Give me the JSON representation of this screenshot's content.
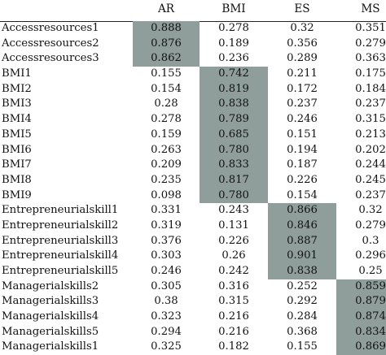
{
  "highlight_color": "#8f9e9b",
  "table": {
    "columns": [
      "",
      "AR",
      "BMI",
      "ES",
      "MS"
    ],
    "rows": [
      {
        "label": "Accessresources1",
        "values": [
          "0.888",
          "0.278",
          "0.32",
          "0.351"
        ],
        "highlight": 0
      },
      {
        "label": "Accessresources2",
        "values": [
          "0.876",
          "0.189",
          "0.356",
          "0.279"
        ],
        "highlight": 0
      },
      {
        "label": "Accessresources3",
        "values": [
          "0.862",
          "0.236",
          "0.289",
          "0.363"
        ],
        "highlight": 0
      },
      {
        "label": "BMI1",
        "values": [
          "0.155",
          "0.742",
          "0.211",
          "0.175"
        ],
        "highlight": 1
      },
      {
        "label": "BMI2",
        "values": [
          "0.154",
          "0.819",
          "0.172",
          "0.184"
        ],
        "highlight": 1
      },
      {
        "label": "BMI3",
        "values": [
          "0.28",
          "0.838",
          "0.237",
          "0.237"
        ],
        "highlight": 1
      },
      {
        "label": "BMI4",
        "values": [
          "0.278",
          "0.789",
          "0.246",
          "0.315"
        ],
        "highlight": 1
      },
      {
        "label": "BMI5",
        "values": [
          "0.159",
          "0.685",
          "0.151",
          "0.213"
        ],
        "highlight": 1
      },
      {
        "label": "BMI6",
        "values": [
          "0.263",
          "0.780",
          "0.194",
          "0.202"
        ],
        "highlight": 1
      },
      {
        "label": "BMI7",
        "values": [
          "0.209",
          "0.833",
          "0.187",
          "0.244"
        ],
        "highlight": 1
      },
      {
        "label": "BMI8",
        "values": [
          "0.235",
          "0.817",
          "0.226",
          "0.245"
        ],
        "highlight": 1
      },
      {
        "label": "BMI9",
        "values": [
          "0.098",
          "0.780",
          "0.154",
          "0.237"
        ],
        "highlight": 1
      },
      {
        "label": "Entrepreneurialskill1",
        "values": [
          "0.331",
          "0.243",
          "0.866",
          "0.32"
        ],
        "highlight": 2
      },
      {
        "label": "Entrepreneurialskill2",
        "values": [
          "0.319",
          "0.131",
          "0.846",
          "0.279"
        ],
        "highlight": 2
      },
      {
        "label": "Entrepreneurialskill3",
        "values": [
          "0.376",
          "0.226",
          "0.887",
          "0.3"
        ],
        "highlight": 2
      },
      {
        "label": "Entrepreneurialskill4",
        "values": [
          "0.303",
          "0.26",
          "0.901",
          "0.296"
        ],
        "highlight": 2
      },
      {
        "label": "Entrepreneurialskill5",
        "values": [
          "0.246",
          "0.242",
          "0.838",
          "0.25"
        ],
        "highlight": 2
      },
      {
        "label": "Managerialskills2",
        "values": [
          "0.305",
          "0.316",
          "0.252",
          "0.859"
        ],
        "highlight": 3
      },
      {
        "label": "Managerialskills3",
        "values": [
          "0.38",
          "0.315",
          "0.292",
          "0.879"
        ],
        "highlight": 3
      },
      {
        "label": "Managerialskills4",
        "values": [
          "0.323",
          "0.216",
          "0.284",
          "0.874"
        ],
        "highlight": 3
      },
      {
        "label": "Managerialskills5",
        "values": [
          "0.294",
          "0.216",
          "0.368",
          "0.834"
        ],
        "highlight": 3
      },
      {
        "label": "Managerialskills1",
        "values": [
          "0.325",
          "0.182",
          "0.155",
          "0.869"
        ],
        "highlight": 3
      }
    ]
  }
}
